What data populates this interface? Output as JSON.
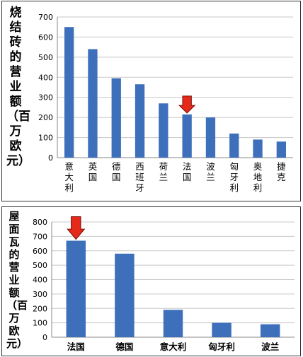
{
  "chart_data": [
    {
      "type": "bar",
      "ylabel": "烧结砖的营业额（百万欧元）",
      "categories": [
        "意大利",
        "英国",
        "德国",
        "西班牙",
        "荷兰",
        "法国",
        "波兰",
        "匈牙利",
        "奥地利",
        "捷克"
      ],
      "values": [
        650,
        540,
        395,
        365,
        270,
        215,
        200,
        120,
        90,
        80
      ],
      "ylim": [
        0,
        700
      ],
      "yticks": [
        0,
        100,
        200,
        300,
        400,
        500,
        600,
        700
      ],
      "grid": true,
      "bar_color": "#3d6fba",
      "highlight": {
        "category": "法国",
        "marker": "red-down-arrow",
        "color": "#e52a1a"
      }
    },
    {
      "type": "bar",
      "ylabel": "屋面瓦的营业额（百万欧元）",
      "categories": [
        "法国",
        "德国",
        "意大利",
        "匈牙利",
        "波兰"
      ],
      "values": [
        670,
        580,
        190,
        100,
        90
      ],
      "ylim": [
        0,
        800
      ],
      "yticks": [
        0,
        100,
        200,
        300,
        400,
        500,
        600,
        700,
        800
      ],
      "grid": true,
      "bar_color": "#3d6fba",
      "highlight": {
        "category": "法国",
        "marker": "red-down-arrow",
        "color": "#e52a1a"
      }
    }
  ]
}
